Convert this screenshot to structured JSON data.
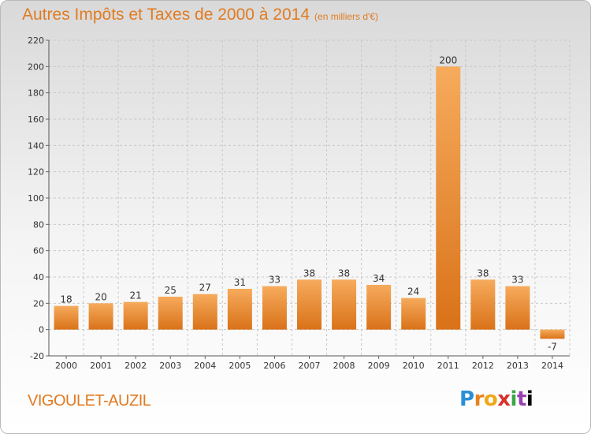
{
  "header": {
    "title": "Autres Impôts et Taxes de 2000 à 2014",
    "subtitle": "(en milliers d'€)"
  },
  "footer": {
    "commune": "VIGOULET-AUZIL",
    "logo_letters": [
      "P",
      "r",
      "o",
      "x",
      "i",
      "t",
      "i"
    ]
  },
  "colors": {
    "title": "#e07b22",
    "bar_light": "#f6ab5c",
    "bar_dark": "#d97219",
    "grid": "#c8c8c8"
  },
  "chart_data": {
    "type": "bar",
    "title": "Autres Impôts et Taxes de 2000 à 2014",
    "subtitle": "(en milliers d'€)",
    "categories": [
      "2000",
      "2001",
      "2002",
      "2003",
      "2004",
      "2005",
      "2006",
      "2007",
      "2008",
      "2009",
      "2010",
      "2011",
      "2012",
      "2013",
      "2014"
    ],
    "values": [
      18,
      20,
      21,
      25,
      27,
      31,
      33,
      38,
      38,
      34,
      24,
      200,
      38,
      33,
      -7
    ],
    "data_labels": [
      "18",
      "20",
      "21",
      "25",
      "27",
      "31",
      "33",
      "38",
      "38",
      "34",
      "24",
      "200",
      "38",
      "33",
      "-7"
    ],
    "ylim": [
      -20,
      220
    ],
    "yticks": [
      -20,
      0,
      20,
      40,
      60,
      80,
      100,
      120,
      140,
      160,
      180,
      200,
      220
    ],
    "xlabel": "",
    "ylabel": "",
    "grid": true
  }
}
